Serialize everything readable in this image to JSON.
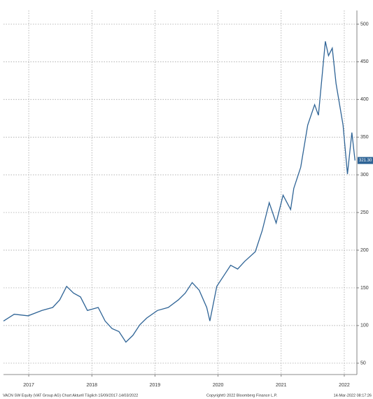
{
  "chart_data": {
    "type": "line",
    "x": [
      2016.6,
      2016.77,
      2016.99,
      2017.21,
      2017.38,
      2017.49,
      2017.6,
      2017.71,
      2017.82,
      2017.93,
      2018.1,
      2018.21,
      2018.32,
      2018.43,
      2018.54,
      2018.65,
      2018.76,
      2018.87,
      2019.04,
      2019.21,
      2019.37,
      2019.48,
      2019.59,
      2019.7,
      2019.82,
      2019.87,
      2019.98,
      2020.09,
      2020.2,
      2020.31,
      2020.42,
      2020.59,
      2020.7,
      2020.81,
      2020.92,
      2021.03,
      2021.15,
      2021.2,
      2021.31,
      2021.42,
      2021.53,
      2021.59,
      2021.7,
      2021.75,
      2021.81,
      2021.87,
      2021.98,
      2022.05,
      2022.12,
      2022.17
    ],
    "series": [
      {
        "color": "#2f6496",
        "values": [
          106,
          115,
          113,
          120,
          124,
          134,
          152,
          143,
          138,
          120,
          124,
          106,
          96,
          92,
          78,
          87,
          101,
          110,
          120,
          124,
          134,
          143,
          157,
          147,
          124,
          106,
          152,
          166,
          180,
          175,
          185,
          198,
          226,
          263,
          236,
          273,
          254,
          282,
          310,
          366,
          393,
          379,
          477,
          458,
          468,
          421,
          366,
          301,
          356,
          319
        ]
      }
    ],
    "xlim": [
      2016.6,
      2022.2
    ],
    "xticks": [
      2017,
      2018,
      2019,
      2020,
      2021,
      2022
    ],
    "ylim": [
      35,
      518
    ],
    "yticks": [
      50,
      100,
      150,
      200,
      250,
      300,
      350,
      400,
      450,
      500
    ],
    "grid": true,
    "last_value_label": "321.30",
    "footer": [
      "VACN SW Equity (VAT Group AG) Chart Aktuell  Täglich 15/09/2017-14/03/2022",
      "Copyright© 2022 Bloomberg Finance L.P.",
      "14-Mar-2022 08:17:26"
    ]
  }
}
